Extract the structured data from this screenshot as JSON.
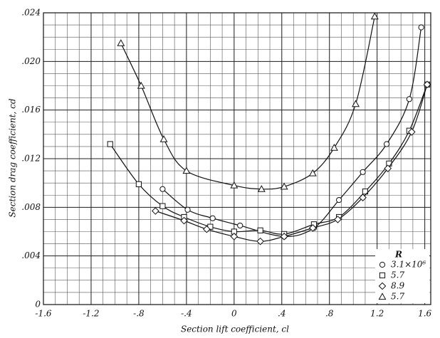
{
  "chart_data": {
    "type": "line",
    "x_label": "Section lift coefficient, cl",
    "y_label": "Section drag coefficient, cd",
    "xlim": [
      -1.6,
      1.65
    ],
    "ylim": [
      0,
      0.024
    ],
    "xticks": [
      {
        "value": -1.6,
        "label": "-1.6"
      },
      {
        "value": -1.2,
        "label": "-1.2"
      },
      {
        "value": -0.8,
        "label": "-.8"
      },
      {
        "value": -0.4,
        "label": "-.4"
      },
      0,
      {
        "value": 0.4,
        "label": ".4"
      },
      {
        "value": 0.8,
        "label": ".8"
      },
      {
        "value": 1.2,
        "label": "1.2"
      },
      {
        "value": 1.6,
        "label": "1.6"
      }
    ],
    "yticks": [
      0,
      {
        "value": 0.004,
        "label": ".004"
      },
      {
        "value": 0.008,
        "label": ".008"
      },
      {
        "value": 0.012,
        "label": ".012"
      },
      {
        "value": 0.016,
        "label": ".016"
      },
      {
        "value": 0.02,
        "label": ".020"
      },
      {
        "value": 0.024,
        "label": ".024"
      }
    ],
    "grid": true,
    "legend_title": "R",
    "legend_position": "lower right",
    "series": [
      {
        "name": "3.1×10⁶",
        "color": "#111111",
        "marker": "circle",
        "x": [
          -0.6,
          -0.39,
          -0.18,
          0.05,
          0.42,
          0.67,
          0.88,
          1.08,
          1.28,
          1.47,
          1.57
        ],
        "values": [
          0.0095,
          0.0078,
          0.0071,
          0.0065,
          0.0056,
          0.0063,
          0.0086,
          0.0109,
          0.0132,
          0.0169,
          0.0228
        ]
      },
      {
        "name": "5.7",
        "color": "#111111",
        "marker": "square",
        "x": [
          -1.04,
          -0.8,
          -0.6,
          -0.42,
          -0.2,
          0,
          0.22,
          0.42,
          0.67,
          0.88,
          1.1,
          1.3,
          1.47,
          1.62
        ],
        "values": [
          0.0132,
          0.0099,
          0.0081,
          0.0072,
          0.0064,
          0.006,
          0.0061,
          0.0058,
          0.0066,
          0.0072,
          0.0093,
          0.0116,
          0.0143,
          0.0181
        ]
      },
      {
        "name": "8.9",
        "color": "#111111",
        "marker": "diamond",
        "x": [
          -0.66,
          -0.42,
          -0.23,
          0,
          0.22,
          0.42,
          0.66,
          0.87,
          1.08,
          1.29,
          1.49,
          1.62
        ],
        "values": [
          0.0077,
          0.0069,
          0.0062,
          0.0056,
          0.0052,
          0.0056,
          0.0063,
          0.007,
          0.0088,
          0.0112,
          0.0142,
          0.0181
        ]
      },
      {
        "name": "5.7",
        "color": "#111111",
        "marker": "triangle",
        "x": [
          -0.95,
          -0.78,
          -0.59,
          -0.4,
          0,
          0.23,
          0.42,
          0.66,
          0.84,
          1.02,
          1.18
        ],
        "values": [
          0.0215,
          0.018,
          0.0136,
          0.011,
          0.0098,
          0.0095,
          0.0097,
          0.0108,
          0.0129,
          0.0165,
          0.0237
        ]
      }
    ]
  }
}
